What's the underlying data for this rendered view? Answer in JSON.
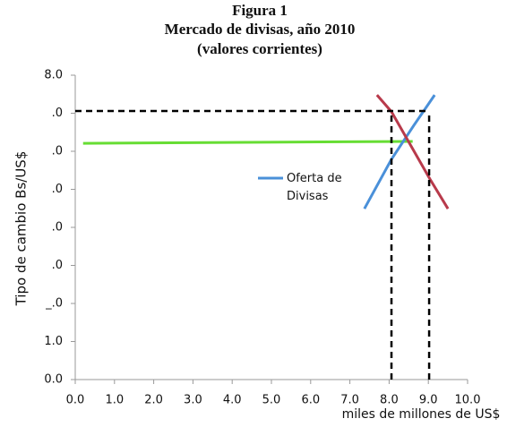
{
  "chart_data": {
    "type": "line",
    "title": [
      "Figura 1",
      "Mercado de divisas, año 2010",
      "(valores corrientes)"
    ],
    "ylabel": "Tipo de cambio Bs/US$",
    "xlabel": "miles de millones de US$",
    "xlim": [
      0,
      10
    ],
    "ylim": [
      0,
      8
    ],
    "xticks": [
      {
        "value": 0,
        "label": "0.0"
      },
      {
        "value": 1,
        "label": "1.0"
      },
      {
        "value": 2,
        "label": "2.0"
      },
      {
        "value": 3,
        "label": "3.0"
      },
      {
        "value": 4,
        "label": "4.0"
      },
      {
        "value": 5,
        "label": "5.0"
      },
      {
        "value": 6,
        "label": "6.0"
      },
      {
        "value": 7,
        "label": "7.0"
      },
      {
        "value": 8,
        "label": "8.0"
      },
      {
        "value": 9,
        "label": "9.0"
      },
      {
        "value": 10,
        "label": "10.0"
      }
    ],
    "yticks": [
      {
        "value": 0,
        "label": "0.0"
      },
      {
        "value": 1,
        "label": "1.0"
      },
      {
        "value": 2,
        "label": "_.0"
      },
      {
        "value": 3,
        "label": ".0"
      },
      {
        "value": 4,
        "label": ".0"
      },
      {
        "value": 5,
        "label": ".0"
      },
      {
        "value": 6,
        "label": ".0"
      },
      {
        "value": 7,
        "label": ".0"
      },
      {
        "value": 8,
        "label": "8.0"
      }
    ],
    "legend": "center",
    "series": [
      {
        "color": "#66dd33",
        "x": [
          0.2,
          8.6
        ],
        "values": [
          6.21,
          6.26
        ]
      },
      {
        "name": "Oferta de Divisas",
        "color": "#4a90d9",
        "x": [
          7.37,
          8.06,
          8.63,
          9.16
        ],
        "values": [
          4.49,
          5.79,
          6.68,
          7.48
        ]
      },
      {
        "color": "#b83a4b",
        "x": [
          7.69,
          8.06,
          9.04,
          9.5
        ],
        "values": [
          7.48,
          7.04,
          5.27,
          4.49
        ]
      },
      {
        "color": "#000000",
        "dash": true,
        "x": [
          0,
          9.02
        ],
        "values": [
          7.06,
          7.06
        ]
      },
      {
        "color": "#000000",
        "dash": true,
        "x": [
          8.06,
          8.06
        ],
        "values": [
          0,
          7.06
        ]
      },
      {
        "color": "#000000",
        "dash": true,
        "x": [
          9.02,
          9.02
        ],
        "values": [
          0,
          7.06
        ]
      }
    ]
  }
}
